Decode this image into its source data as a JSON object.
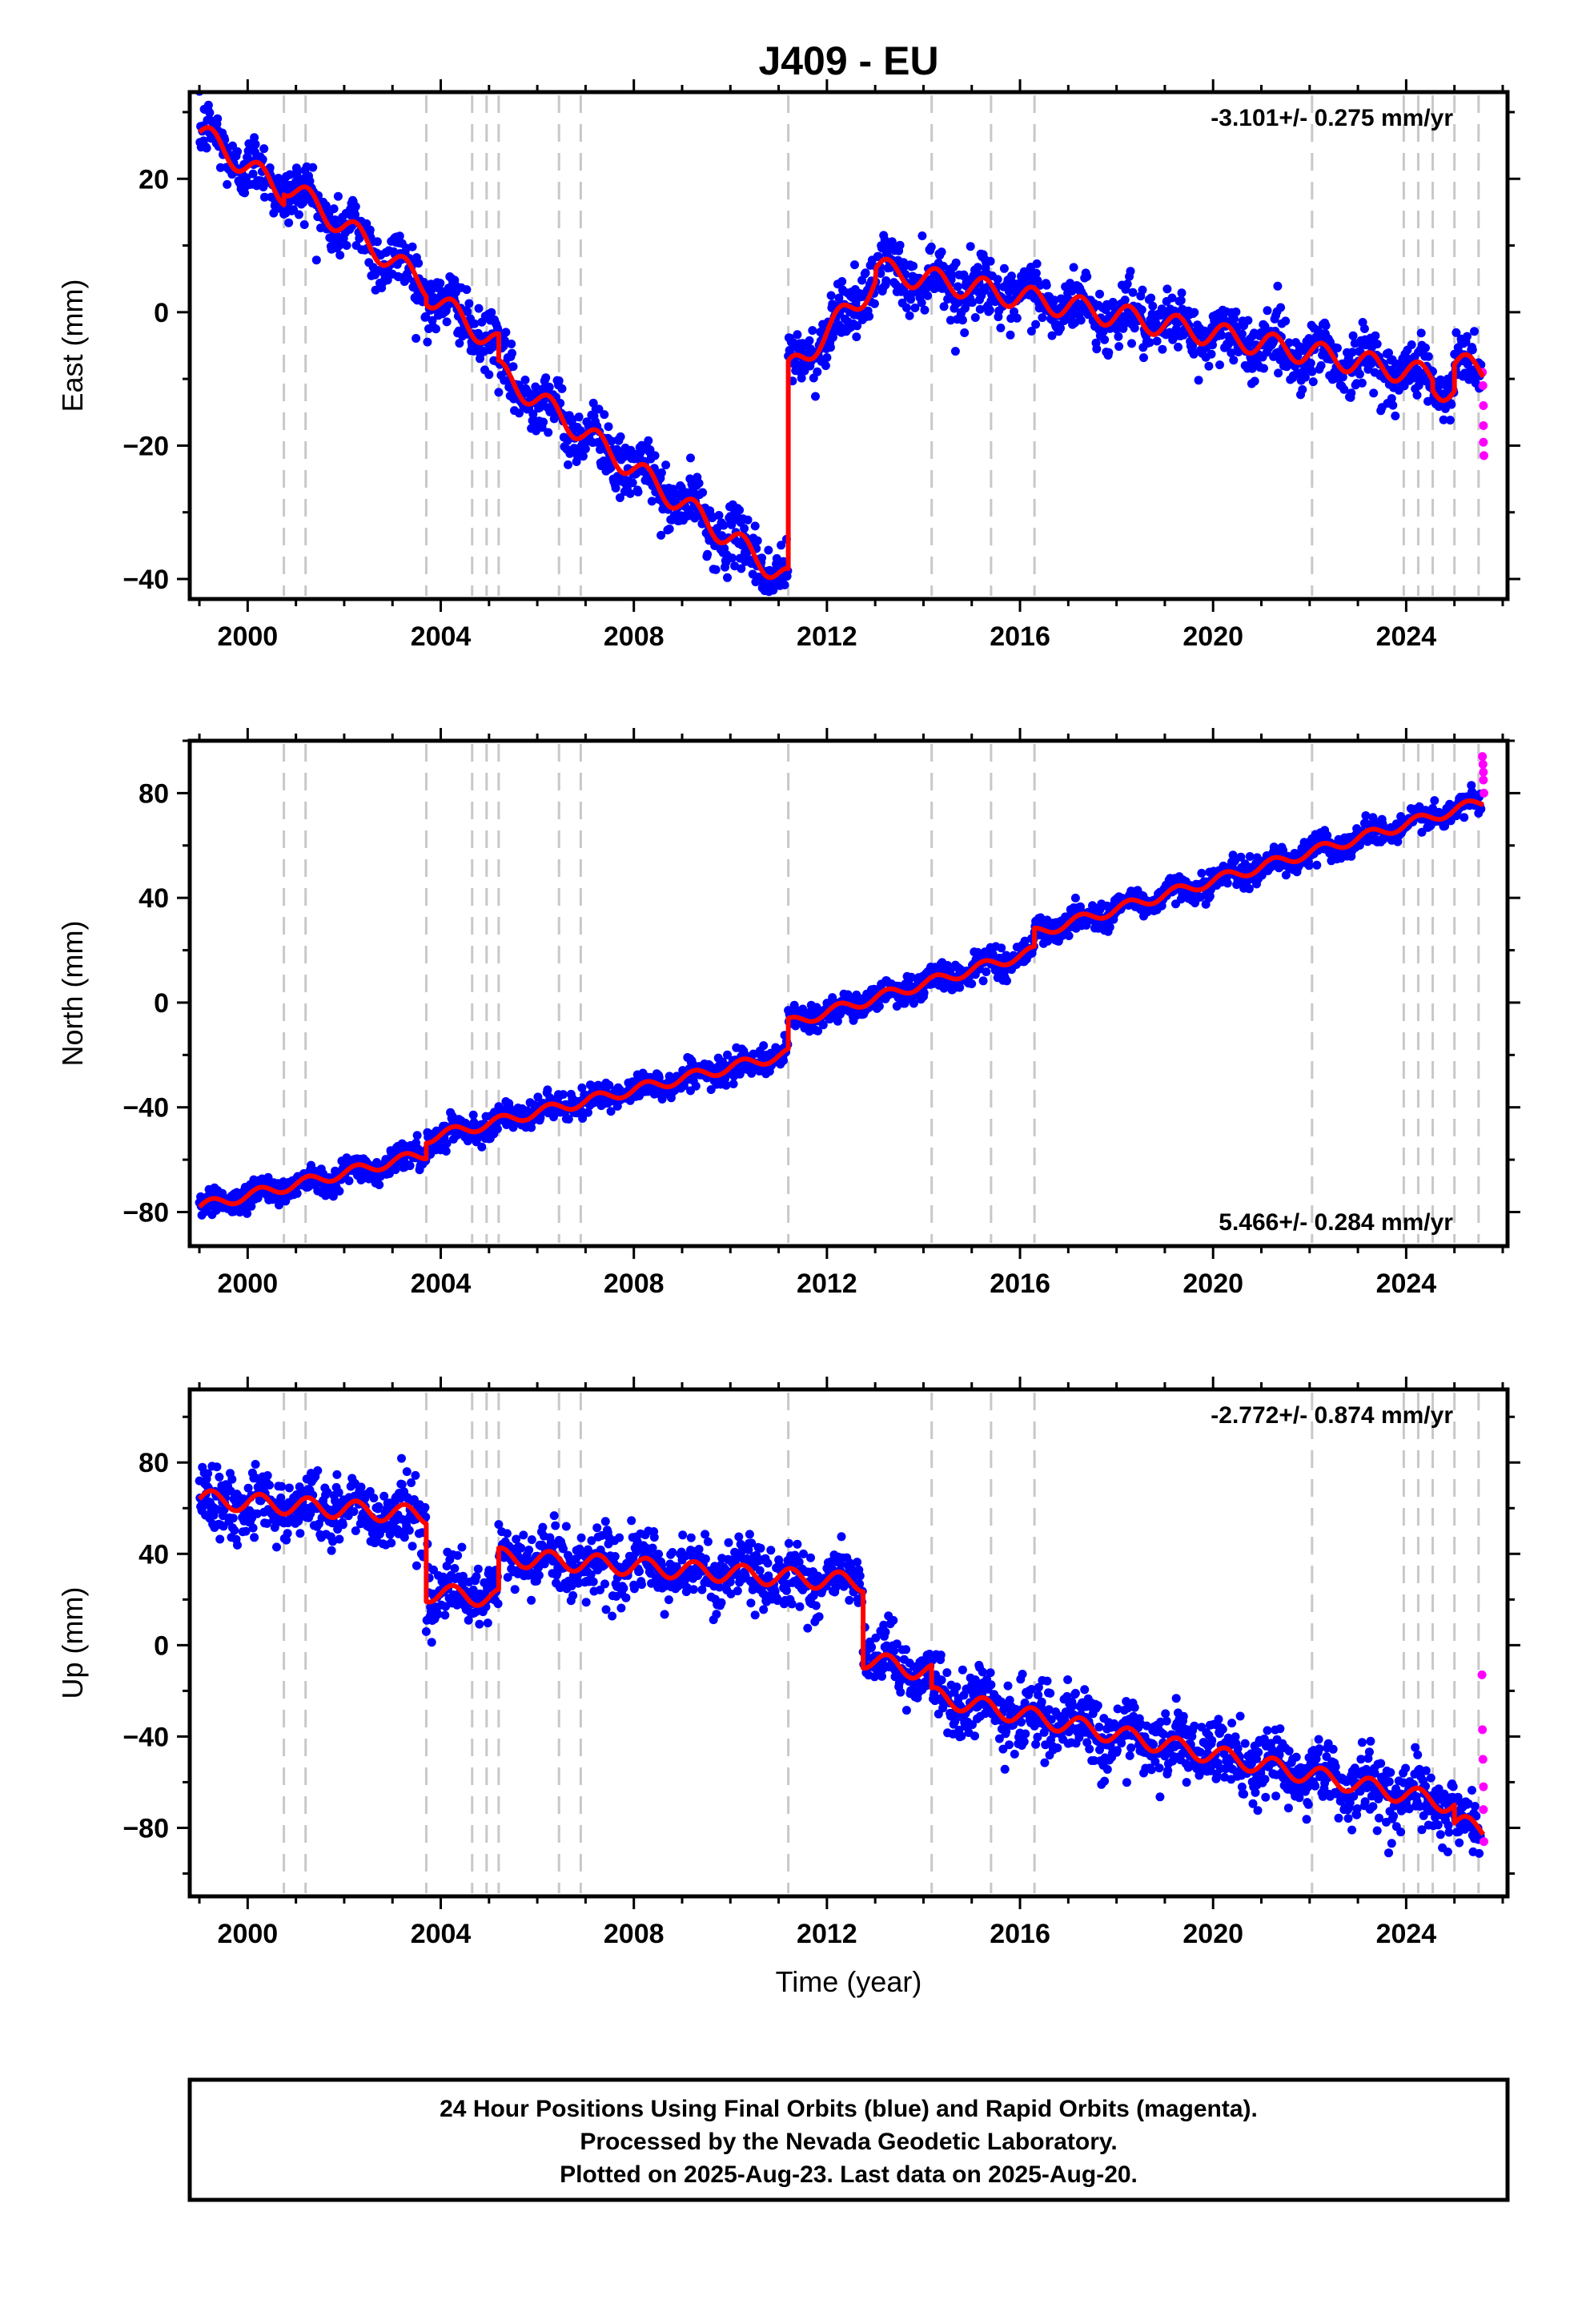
{
  "figure": {
    "title": "J409 - EU",
    "xlabel": "Time (year)",
    "footer": [
      "24 Hour Positions Using Final Orbits (blue) and Rapid Orbits (magenta).",
      "Processed by the Nevada Geodetic Laboratory.",
      "Plotted on 2025-Aug-23. Last data on 2025-Aug-20."
    ],
    "colors": {
      "final": "#0000ff",
      "rapid": "#ff00ff",
      "model": "#ff0000",
      "events": "#c8c8c8"
    }
  },
  "chart_data": [
    {
      "type": "scatter",
      "ylabel": "East (mm)",
      "rate_label": "-3.101+/- 0.275 mm/yr",
      "rate_position": "top-right",
      "xlim": [
        1998.8,
        2026.1
      ],
      "ylim": [
        -43,
        33
      ],
      "xticks": [
        2000,
        2004,
        2008,
        2012,
        2016,
        2020,
        2024
      ],
      "yticks": [
        -40,
        -20,
        0,
        20
      ],
      "events": [
        2000.75,
        2001.2,
        2003.7,
        2004.65,
        2004.95,
        2005.2,
        2006.45,
        2006.9,
        2011.2,
        2014.17,
        2015.4,
        2016.3,
        2022.05,
        2023.95,
        2024.25,
        2024.55,
        2025.0,
        2025.5
      ],
      "model": {
        "steps": [
          {
            "t": 2000.75,
            "dy": 1.5
          },
          {
            "t": 2003.7,
            "dy": -1.2
          },
          {
            "t": 2005.2,
            "dy": -4
          },
          {
            "t": 2011.2,
            "dy": 28
          },
          {
            "t": 2024.55,
            "dy": -1.5
          },
          {
            "t": 2025.0,
            "dy": 4
          }
        ],
        "segments": [
          {
            "from": 1999.0,
            "to": 2011.2,
            "y0": 27,
            "rate": -5.2
          },
          {
            "from": 2011.2,
            "to": 2013.0,
            "y0": -9,
            "rate": 7.5
          },
          {
            "from": 2013.0,
            "to": 2025.6,
            "y0": 6.5,
            "rate": -1.4
          }
        ],
        "annual_amplitude": 1.8
      },
      "noise_sd": 2.2,
      "rapid_points": [
        {
          "x": 2025.58,
          "y": -9
        },
        {
          "x": 2025.59,
          "y": -11
        },
        {
          "x": 2025.6,
          "y": -14
        },
        {
          "x": 2025.6,
          "y": -17
        },
        {
          "x": 2025.6,
          "y": -19.5
        },
        {
          "x": 2025.61,
          "y": -21.5
        }
      ]
    },
    {
      "type": "scatter",
      "ylabel": "North (mm)",
      "rate_label": "5.466+/- 0.284 mm/yr",
      "rate_position": "bottom-right",
      "xlim": [
        1998.8,
        2026.1
      ],
      "ylim": [
        -93,
        100
      ],
      "xticks": [
        2000,
        2004,
        2008,
        2012,
        2016,
        2020,
        2024
      ],
      "yticks": [
        -80,
        -40,
        0,
        40,
        80
      ],
      "events": [
        2000.75,
        2001.2,
        2003.7,
        2004.65,
        2004.95,
        2005.2,
        2006.45,
        2006.9,
        2011.2,
        2014.17,
        2015.4,
        2016.3,
        2022.05,
        2023.95,
        2024.25,
        2024.55,
        2025.0,
        2025.5
      ],
      "model": {
        "steps": [
          {
            "t": 2003.7,
            "dy": 6
          },
          {
            "t": 2011.2,
            "dy": 10
          },
          {
            "t": 2016.3,
            "dy": 7
          }
        ],
        "segments": [
          {
            "from": 1999.0,
            "to": 2011.2,
            "y0": -78,
            "rate": 4.3
          },
          {
            "from": 2011.2,
            "to": 2025.6,
            "y0": -8,
            "rate": 5.4
          }
        ],
        "annual_amplitude": 2
      },
      "noise_sd": 2.5,
      "rapid_points": [
        {
          "x": 2025.58,
          "y": 94
        },
        {
          "x": 2025.59,
          "y": 91
        },
        {
          "x": 2025.6,
          "y": 88
        },
        {
          "x": 2025.6,
          "y": 85
        },
        {
          "x": 2025.61,
          "y": 80
        }
      ]
    },
    {
      "type": "scatter",
      "ylabel": "Up (mm)",
      "rate_label": "-2.772+/- 0.874 mm/yr",
      "rate_position": "top-right",
      "xlim": [
        1998.8,
        2026.1
      ],
      "ylim": [
        -110,
        112
      ],
      "xticks": [
        2000,
        2004,
        2008,
        2012,
        2016,
        2020,
        2024
      ],
      "yticks": [
        -80,
        -40,
        0,
        40,
        80
      ],
      "events": [
        2000.75,
        2001.2,
        2003.7,
        2004.65,
        2004.95,
        2005.2,
        2006.45,
        2006.9,
        2011.2,
        2014.17,
        2015.4,
        2016.3,
        2022.05,
        2023.95,
        2024.25,
        2024.55,
        2025.0,
        2025.5
      ],
      "model": {
        "steps": [
          {
            "t": 2003.7,
            "dy": -34
          },
          {
            "t": 2005.2,
            "dy": 18
          },
          {
            "t": 2012.75,
            "dy": -28
          },
          {
            "t": 2014.17,
            "dy": -10
          },
          {
            "t": 2025.0,
            "dy": -8
          }
        ],
        "segments": [
          {
            "from": 1999.0,
            "to": 2012.75,
            "y0": 64,
            "rate": -1.5
          },
          {
            "from": 2012.75,
            "to": 2025.6,
            "y0": -6,
            "rate": -4.4
          }
        ],
        "annual_amplitude": 4
      },
      "noise_sd": 7,
      "rapid_points": [
        {
          "x": 2025.57,
          "y": -13
        },
        {
          "x": 2025.58,
          "y": -37
        },
        {
          "x": 2025.59,
          "y": -50
        },
        {
          "x": 2025.6,
          "y": -62
        },
        {
          "x": 2025.6,
          "y": -72
        },
        {
          "x": 2025.61,
          "y": -86
        }
      ]
    }
  ]
}
